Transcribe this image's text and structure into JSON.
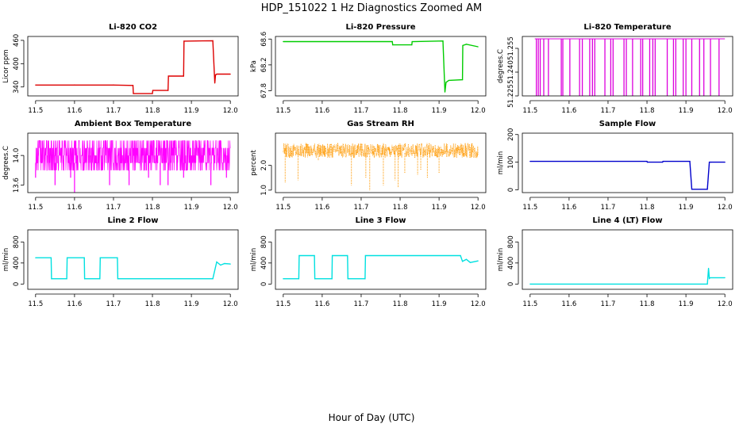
{
  "figure": {
    "title": "HDP_151022  1 Hz Diagnostics Zoomed AM",
    "xlabel": "Hour of Day (UTC)"
  },
  "chart_data": [
    {
      "type": "line",
      "title": "Li-820 CO2",
      "ylabel": "Licor ppm",
      "color": "#dd0000",
      "xlim": [
        11.48,
        12.02
      ],
      "ylim": [
        317,
        470
      ],
      "xticks": [
        "11.5",
        "11.6",
        "11.7",
        "11.8",
        "11.9",
        "12.0"
      ],
      "yticks": [
        "340",
        "400",
        "460"
      ],
      "ytick_values": [
        340,
        400,
        460
      ],
      "x": [
        11.5,
        11.6,
        11.7,
        11.75,
        11.751,
        11.8,
        11.801,
        11.84,
        11.841,
        11.88,
        11.881,
        11.955,
        11.96,
        11.962,
        11.965,
        12.0
      ],
      "values": [
        345,
        345,
        345,
        344,
        323,
        323,
        331,
        331,
        368,
        368,
        458,
        459,
        350,
        371,
        373,
        373
      ]
    },
    {
      "type": "line",
      "title": "Li-820 Pressure",
      "ylabel": "kPa",
      "color": "#00cc00",
      "xlim": [
        11.48,
        12.02
      ],
      "ylim": [
        67.72,
        68.64
      ],
      "xticks": [
        "11.5",
        "11.6",
        "11.7",
        "11.8",
        "11.9",
        "12.0"
      ],
      "yticks": [
        "67.8",
        "68.2",
        "68.6"
      ],
      "ytick_values": [
        67.8,
        68.2,
        68.6
      ],
      "x": [
        11.5,
        11.78,
        11.781,
        11.83,
        11.831,
        11.91,
        11.915,
        11.918,
        11.925,
        11.96,
        11.961,
        11.97,
        12.0
      ],
      "values": [
        68.56,
        68.56,
        68.51,
        68.51,
        68.56,
        68.57,
        67.78,
        67.93,
        67.96,
        67.97,
        68.5,
        68.52,
        68.48
      ]
    },
    {
      "type": "line",
      "title": "Li-820 Temperature",
      "ylabel": "degrees.C",
      "color": "#dd00dd",
      "xlim": [
        11.48,
        12.02
      ],
      "ylim": [
        51.225,
        51.2625
      ],
      "xticks": [
        "11.5",
        "11.6",
        "11.7",
        "11.8",
        "11.9",
        "12.0"
      ],
      "yticks": [
        "51.225",
        "51.240",
        "51.255"
      ],
      "ytick_values": [
        51.225,
        51.24,
        51.255
      ],
      "baseline": 51.261,
      "drop_to": 51.225,
      "drops": [
        11.516,
        11.521,
        11.526,
        11.535,
        11.547,
        11.58,
        11.584,
        11.602,
        11.627,
        11.634,
        11.653,
        11.66,
        11.666,
        11.692,
        11.707,
        11.713,
        11.741,
        11.747,
        11.763,
        11.784,
        11.789,
        11.807,
        11.815,
        11.821,
        11.852,
        11.868,
        11.874,
        11.893,
        11.9,
        11.915,
        11.935,
        11.946,
        11.963,
        11.985
      ]
    },
    {
      "type": "line",
      "title": "Ambient Box Temperature",
      "ylabel": "degrees.C",
      "color": "#ff00ff",
      "xlim": [
        11.48,
        12.02
      ],
      "ylim": [
        13.5,
        14.3
      ],
      "xticks": [
        "11.5",
        "11.6",
        "11.7",
        "11.8",
        "11.9",
        "12.0"
      ],
      "yticks": [
        "13.6",
        "14.0"
      ],
      "ytick_values": [
        13.6,
        14.0
      ],
      "noise_levels": [
        13.8,
        13.9,
        14.0,
        14.1,
        14.2
      ],
      "low_spikes": [
        11.5,
        11.55,
        11.59,
        11.6,
        11.69,
        11.74,
        11.79,
        11.82,
        11.84,
        11.88,
        11.95,
        11.99
      ],
      "low_spike_values": [
        13.7,
        13.6,
        13.7,
        13.5,
        13.6,
        13.6,
        13.7,
        13.6,
        13.6,
        13.7,
        13.6,
        13.7
      ]
    },
    {
      "type": "scatter",
      "title": "Gas Stream RH",
      "ylabel": "percent",
      "color": "#ff9900",
      "xlim": [
        11.48,
        12.02
      ],
      "ylim": [
        0.9,
        3.3
      ],
      "xticks": [
        "11.5",
        "11.6",
        "11.7",
        "11.8",
        "11.9",
        "12.0"
      ],
      "yticks": [
        "1.0",
        "2.0"
      ],
      "ytick_values": [
        1.0,
        2.0
      ],
      "band": [
        2.3,
        2.9
      ],
      "dips": [
        11.505,
        11.538,
        11.59,
        11.675,
        11.712,
        11.722,
        11.757,
        11.787,
        11.795,
        11.812,
        11.845,
        11.853,
        11.87,
        11.9
      ],
      "dip_values": [
        1.3,
        1.4,
        2.2,
        1.2,
        1.5,
        1.0,
        1.2,
        1.4,
        1.1,
        1.7,
        1.6,
        1.8,
        1.5,
        1.7
      ]
    },
    {
      "type": "line",
      "title": "Sample Flow",
      "ylabel": "ml/min",
      "color": "#0000cc",
      "xlim": [
        11.48,
        12.02
      ],
      "ylim": [
        -10,
        205
      ],
      "xticks": [
        "11.5",
        "11.6",
        "11.7",
        "11.8",
        "11.9",
        "12.0"
      ],
      "yticks": [
        "0",
        "100",
        "200"
      ],
      "ytick_values": [
        0,
        100,
        200
      ],
      "x": [
        11.5,
        11.8,
        11.801,
        11.84,
        11.841,
        11.91,
        11.915,
        11.955,
        11.96,
        11.965,
        12.0
      ],
      "values": [
        103,
        103,
        100,
        100,
        103,
        103,
        2,
        2,
        100,
        100,
        100
      ]
    },
    {
      "type": "line",
      "title": "Line 2 Flow",
      "ylabel": "ml/min",
      "color": "#00e0e0",
      "xlim": [
        11.48,
        12.02
      ],
      "ylim": [
        -100,
        1030
      ],
      "xticks": [
        "11.5",
        "11.6",
        "11.7",
        "11.8",
        "11.9",
        "12.0"
      ],
      "yticks": [
        "0",
        "400",
        "800"
      ],
      "ytick_values": [
        0,
        400,
        800
      ],
      "x": [
        11.5,
        11.54,
        11.541,
        11.58,
        11.581,
        11.625,
        11.626,
        11.665,
        11.666,
        11.71,
        11.711,
        11.955,
        11.965,
        11.975,
        11.985,
        12.0
      ],
      "values": [
        500,
        500,
        100,
        100,
        500,
        500,
        100,
        100,
        500,
        500,
        100,
        100,
        420,
        360,
        390,
        380
      ]
    },
    {
      "type": "line",
      "title": "Line 3 Flow",
      "ylabel": "ml/min",
      "color": "#00e0e0",
      "xlim": [
        11.48,
        12.02
      ],
      "ylim": [
        -100,
        1030
      ],
      "xticks": [
        "11.5",
        "11.6",
        "11.7",
        "11.8",
        "11.9",
        "12.0"
      ],
      "yticks": [
        "0",
        "400",
        "800"
      ],
      "ytick_values": [
        0,
        400,
        800
      ],
      "x": [
        11.5,
        11.54,
        11.541,
        11.58,
        11.581,
        11.625,
        11.626,
        11.665,
        11.666,
        11.71,
        11.711,
        11.955,
        11.96,
        11.97,
        11.98,
        12.0
      ],
      "values": [
        100,
        100,
        540,
        540,
        100,
        100,
        540,
        540,
        100,
        100,
        540,
        540,
        430,
        470,
        410,
        440
      ]
    },
    {
      "type": "line",
      "title": "Line 4 (LT) Flow",
      "ylabel": "ml/min",
      "color": "#00e0e0",
      "xlim": [
        11.48,
        12.02
      ],
      "ylim": [
        -100,
        1030
      ],
      "xticks": [
        "11.5",
        "11.6",
        "11.7",
        "11.8",
        "11.9",
        "12.0"
      ],
      "yticks": [
        "0",
        "400",
        "800"
      ],
      "ytick_values": [
        0,
        400,
        800
      ],
      "x": [
        11.5,
        11.955,
        11.958,
        11.96,
        11.961,
        12.0
      ],
      "values": [
        0,
        0,
        300,
        100,
        120,
        120
      ]
    }
  ]
}
